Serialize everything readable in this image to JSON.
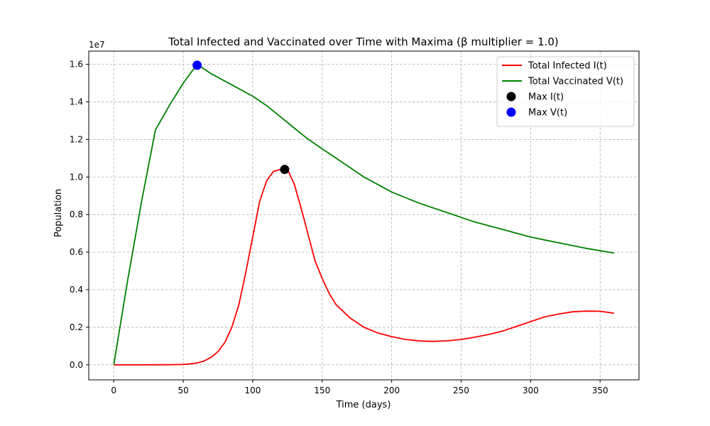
{
  "chart_data": {
    "type": "line",
    "title": "Total Infected and Vaccinated over Time with Maxima (β multiplier = 1.0)",
    "xlabel": "Time (days)",
    "ylabel": "Population",
    "y_multiplier_label": "1e7",
    "y_scale_factor": 10000000,
    "xlim": [
      -18,
      378
    ],
    "ylim": [
      -800000,
      16700000
    ],
    "xticks": [
      0,
      50,
      100,
      150,
      200,
      250,
      300,
      350
    ],
    "yticks": [
      0,
      2000000,
      4000000,
      6000000,
      8000000,
      10000000,
      12000000,
      14000000,
      16000000
    ],
    "ytick_labels": [
      "0.0",
      "0.2",
      "0.4",
      "0.6",
      "0.8",
      "1.0",
      "1.2",
      "1.4",
      "1.6"
    ],
    "grid": true,
    "legend_position": "top-right",
    "series": [
      {
        "name": "Total Infected I(t)",
        "color": "#ff0000",
        "kind": "line",
        "x": [
          0,
          20,
          40,
          50,
          55,
          60,
          65,
          70,
          75,
          80,
          85,
          90,
          95,
          100,
          105,
          110,
          115,
          120,
          123,
          126,
          130,
          135,
          140,
          145,
          150,
          155,
          160,
          170,
          180,
          190,
          200,
          210,
          220,
          230,
          240,
          250,
          260,
          270,
          280,
          290,
          300,
          310,
          320,
          330,
          340,
          350,
          360
        ],
        "y": [
          0,
          0,
          5000,
          20000,
          50000,
          100000,
          200000,
          400000,
          700000,
          1200000,
          2000000,
          3200000,
          4900000,
          6800000,
          8700000,
          9800000,
          10300000,
          10400000,
          10400000,
          10250000,
          9600000,
          8300000,
          6900000,
          5500000,
          4600000,
          3800000,
          3200000,
          2500000,
          2000000,
          1700000,
          1500000,
          1350000,
          1270000,
          1250000,
          1280000,
          1350000,
          1470000,
          1620000,
          1800000,
          2050000,
          2300000,
          2550000,
          2700000,
          2820000,
          2860000,
          2850000,
          2750000
        ]
      },
      {
        "name": "Total Vaccinated V(t)",
        "color": "#008000",
        "kind": "line",
        "x": [
          0,
          10,
          20,
          30,
          40,
          50,
          60,
          70,
          80,
          90,
          100,
          110,
          120,
          130,
          140,
          150,
          160,
          170,
          180,
          190,
          200,
          220,
          240,
          260,
          280,
          300,
          320,
          340,
          360
        ],
        "y": [
          0,
          4500000,
          8700000,
          12500000,
          13800000,
          15000000,
          16000000,
          15500000,
          15100000,
          14700000,
          14300000,
          13800000,
          13200000,
          12600000,
          12000000,
          11500000,
          11000000,
          10500000,
          10000000,
          9600000,
          9200000,
          8600000,
          8100000,
          7600000,
          7200000,
          6800000,
          6500000,
          6200000,
          5950000
        ]
      },
      {
        "name": "Max I(t)",
        "color": "#000000",
        "kind": "marker",
        "x": [
          123
        ],
        "y": [
          10400000
        ]
      },
      {
        "name": "Max V(t)",
        "color": "#0000ff",
        "kind": "marker",
        "x": [
          60
        ],
        "y": [
          15950000
        ]
      }
    ]
  }
}
